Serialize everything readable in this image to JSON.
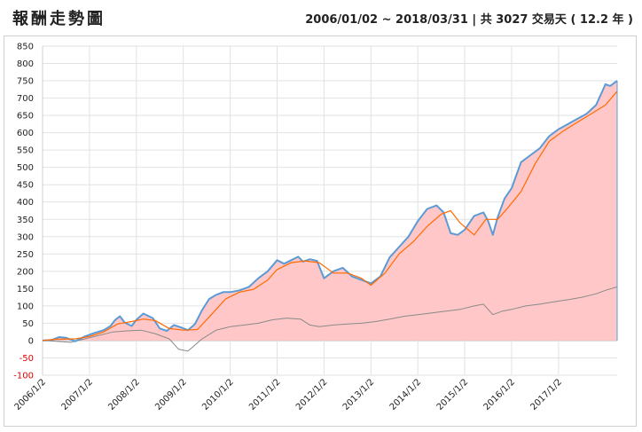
{
  "header": {
    "title": "報酬走勢圖",
    "range": "2006/01/02 ~ 2018/03/31 | 共 3027 交易天 ( 12.2 年 )"
  },
  "colors": {
    "strategy": "#5b9bd5",
    "moving_avg": "#ff6a00",
    "benchmark": "#8a8a8a",
    "area_fill": "#ffc7c7",
    "negative_tick": "#e00000"
  },
  "chart_data": {
    "type": "line",
    "title": "",
    "xlabel": "",
    "ylabel": "",
    "ylim": [
      -100,
      850
    ],
    "yticks": [
      -100,
      -50,
      0,
      50,
      100,
      150,
      200,
      250,
      300,
      350,
      400,
      450,
      500,
      550,
      600,
      650,
      700,
      750,
      800,
      850
    ],
    "xlim": [
      2006.0,
      2018.25
    ],
    "xticks": [
      {
        "x": 2006.0,
        "label": "2006/1/2"
      },
      {
        "x": 2007.0,
        "label": "2007/1/2"
      },
      {
        "x": 2008.0,
        "label": "2008/1/2"
      },
      {
        "x": 2009.0,
        "label": "2009/1/2"
      },
      {
        "x": 2010.0,
        "label": "2010/1/2"
      },
      {
        "x": 2011.0,
        "label": "2011/1/2"
      },
      {
        "x": 2012.0,
        "label": "2012/1/2"
      },
      {
        "x": 2013.0,
        "label": "2013/1/2"
      },
      {
        "x": 2014.0,
        "label": "2014/1/2"
      },
      {
        "x": 2015.0,
        "label": "2015/1/2"
      },
      {
        "x": 2016.0,
        "label": "2016/1/2"
      },
      {
        "x": 2017.0,
        "label": "2017/1/2"
      }
    ],
    "grid": true,
    "series": [
      {
        "key": "strategy",
        "x": [
          2006.0,
          2006.2,
          2006.35,
          2006.5,
          2006.7,
          2006.9,
          2007.1,
          2007.3,
          2007.45,
          2007.55,
          2007.65,
          2007.75,
          2007.9,
          2008.0,
          2008.15,
          2008.35,
          2008.5,
          2008.65,
          2008.8,
          2008.95,
          2009.1,
          2009.25,
          2009.4,
          2009.55,
          2009.7,
          2009.85,
          2010.0,
          2010.2,
          2010.4,
          2010.6,
          2010.8,
          2011.0,
          2011.15,
          2011.3,
          2011.45,
          2011.55,
          2011.7,
          2011.85,
          2012.0,
          2012.2,
          2012.4,
          2012.6,
          2012.8,
          2013.0,
          2013.2,
          2013.4,
          2013.6,
          2013.8,
          2014.0,
          2014.2,
          2014.4,
          2014.55,
          2014.7,
          2014.85,
          2015.0,
          2015.2,
          2015.4,
          2015.5,
          2015.6,
          2015.7,
          2015.85,
          2016.0,
          2016.2,
          2016.4,
          2016.6,
          2016.8,
          2017.0,
          2017.2,
          2017.4,
          2017.6,
          2017.8,
          2018.0,
          2018.1,
          2018.25
        ],
        "values": [
          0,
          2,
          10,
          8,
          -2,
          12,
          22,
          30,
          42,
          60,
          70,
          52,
          42,
          60,
          78,
          65,
          35,
          28,
          45,
          38,
          30,
          48,
          88,
          120,
          132,
          140,
          140,
          145,
          155,
          180,
          200,
          232,
          222,
          232,
          242,
          228,
          235,
          230,
          180,
          200,
          210,
          185,
          175,
          165,
          185,
          240,
          270,
          300,
          345,
          380,
          390,
          370,
          310,
          305,
          320,
          360,
          370,
          345,
          305,
          355,
          410,
          440,
          515,
          535,
          555,
          590,
          610,
          625,
          640,
          655,
          680,
          740,
          735,
          750
        ]
      },
      {
        "key": "moving_avg",
        "x": [
          2006.0,
          2006.3,
          2006.7,
          2007.0,
          2007.3,
          2007.6,
          2007.9,
          2008.15,
          2008.4,
          2008.7,
          2009.0,
          2009.3,
          2009.6,
          2009.9,
          2010.2,
          2010.5,
          2010.8,
          2011.0,
          2011.3,
          2011.6,
          2011.9,
          2012.2,
          2012.5,
          2012.8,
          2013.0,
          2013.3,
          2013.6,
          2013.9,
          2014.2,
          2014.5,
          2014.7,
          2014.9,
          2015.2,
          2015.45,
          2015.7,
          2015.9,
          2016.2,
          2016.5,
          2016.8,
          2017.1,
          2017.4,
          2017.7,
          2018.0,
          2018.25
        ],
        "values": [
          0,
          4,
          5,
          12,
          25,
          48,
          55,
          62,
          58,
          35,
          30,
          32,
          75,
          120,
          140,
          148,
          175,
          205,
          225,
          230,
          225,
          195,
          195,
          180,
          160,
          195,
          250,
          285,
          330,
          365,
          375,
          340,
          305,
          350,
          350,
          380,
          430,
          510,
          575,
          605,
          630,
          655,
          680,
          720
        ]
      },
      {
        "key": "benchmark",
        "x": [
          2006.0,
          2006.3,
          2006.6,
          2006.9,
          2007.2,
          2007.5,
          2007.8,
          2008.1,
          2008.4,
          2008.7,
          2008.9,
          2009.1,
          2009.4,
          2009.7,
          2010.0,
          2010.3,
          2010.6,
          2010.9,
          2011.2,
          2011.5,
          2011.7,
          2011.9,
          2012.2,
          2012.5,
          2012.8,
          2013.1,
          2013.4,
          2013.7,
          2014.0,
          2014.3,
          2014.6,
          2014.9,
          2015.2,
          2015.4,
          2015.6,
          2015.8,
          2016.0,
          2016.3,
          2016.6,
          2016.9,
          2017.2,
          2017.5,
          2017.8,
          2018.0,
          2018.25
        ],
        "values": [
          0,
          -2,
          -5,
          5,
          15,
          25,
          28,
          30,
          20,
          5,
          -25,
          -30,
          5,
          30,
          40,
          45,
          50,
          60,
          65,
          62,
          45,
          40,
          45,
          48,
          50,
          55,
          62,
          70,
          75,
          80,
          85,
          90,
          100,
          105,
          75,
          85,
          90,
          100,
          105,
          112,
          118,
          125,
          135,
          145,
          155
        ]
      }
    ]
  }
}
